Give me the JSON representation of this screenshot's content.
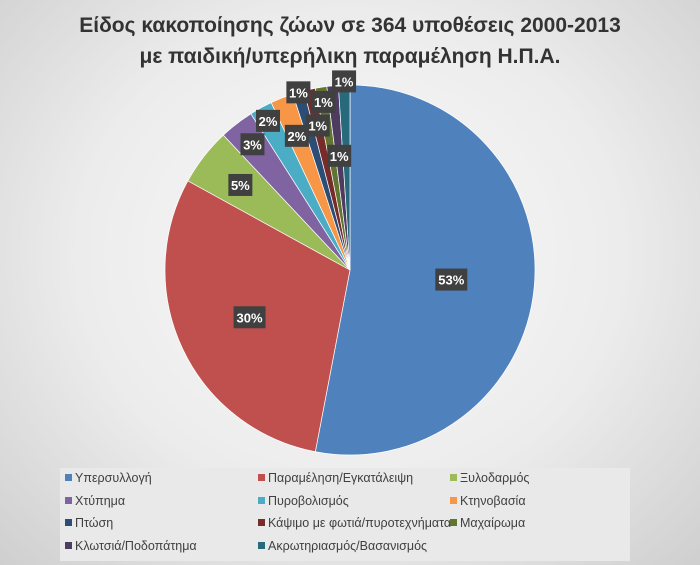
{
  "chart_data": {
    "type": "pie",
    "title": [
      "Είδος κακοποίησης ζώων σε 364 υποθέσεις 2000-2013",
      "με παιδική/υπερήλικη παραμέληση Η.Π.Α."
    ],
    "legend_position": "bottom",
    "start": "top, clockwise",
    "slices": [
      {
        "label": "Υπερσυλλογή",
        "value": 53,
        "data_label": "53%",
        "color": "#4f81bd"
      },
      {
        "label": "Παραμέληση/Εγκατάλειψη",
        "value": 30,
        "data_label": "30%",
        "color": "#c0504d"
      },
      {
        "label": "Ξυλοδαρμός",
        "value": 5,
        "data_label": "5%",
        "color": "#9bbb59"
      },
      {
        "label": "Χτύπημα",
        "value": 3,
        "data_label": "3%",
        "color": "#8064a2"
      },
      {
        "label": "Πυροβολισμός",
        "value": 2,
        "data_label": "2%",
        "color": "#4bacc6"
      },
      {
        "label": "Κτηνοβασία",
        "value": 2,
        "data_label": "2%",
        "color": "#f79646"
      },
      {
        "label": "Πτώση",
        "value": 1,
        "data_label": "1%",
        "color": "#2c4d75"
      },
      {
        "label": "Κάψιμο με φωτιά/πυροτεχνήματα",
        "value": 1,
        "data_label": "1%",
        "color": "#772c2a"
      },
      {
        "label": "Μαχαίρωμα",
        "value": 1,
        "data_label": "1%",
        "color": "#5f7530"
      },
      {
        "label": "Κλωτσιά/Ποδοπάτημα",
        "value": 1,
        "data_label": "1%",
        "color": "#4d3b62"
      },
      {
        "label": "Ακρωτηριασμός/Βασανισμός",
        "value": 1,
        "data_label": "1%",
        "color": "#276a7c"
      }
    ]
  }
}
